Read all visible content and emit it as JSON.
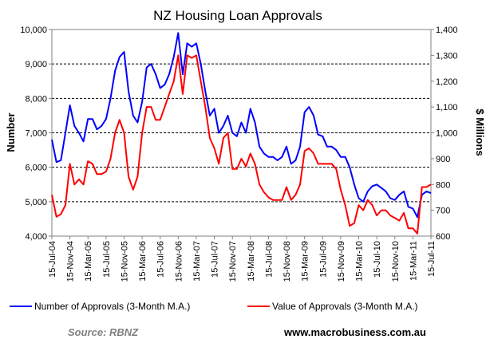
{
  "chart_data": {
    "type": "line",
    "title": "NZ Housing Loan Approvals",
    "ylabel_left": "Number",
    "ylabel_right": "$ Millions",
    "ylim_left": [
      4000,
      10000
    ],
    "ylim_right": [
      600,
      1400
    ],
    "yticks_left": [
      "4,000",
      "5,000",
      "6,000",
      "7,000",
      "8,000",
      "9,000",
      "10,000"
    ],
    "yticks_right": [
      "600",
      "700",
      "800",
      "900",
      "1,000",
      "1,100",
      "1,200",
      "1,300",
      "1,400"
    ],
    "x_ticks": [
      "15-Jul-04",
      "15-Nov-04",
      "15-Mar-05",
      "15-Jul-05",
      "15-Nov-05",
      "15-Mar-06",
      "15-Jul-06",
      "15-Nov-06",
      "15-Mar-07",
      "15-Jul-07",
      "15-Nov-07",
      "15-Mar-08",
      "15-Jul-08",
      "15-Nov-08",
      "15-Mar-09",
      "15-Jul-09",
      "15-Nov-09",
      "15-Mar-10",
      "15-Jul-10",
      "15-Nov-10",
      "15-Mar-11",
      "15-Jul-11"
    ],
    "grid": true,
    "legend_placement": "bottom",
    "series": [
      {
        "name": "Number of Approvals (3-Month M.A.)",
        "axis": "left",
        "color": "#0000ff",
        "x": [
          "2004-07-15",
          "2004-08-15",
          "2004-09-15",
          "2004-10-15",
          "2004-11-15",
          "2004-12-15",
          "2005-01-15",
          "2005-02-15",
          "2005-03-15",
          "2005-04-15",
          "2005-05-15",
          "2005-06-15",
          "2005-07-15",
          "2005-08-15",
          "2005-09-15",
          "2005-10-15",
          "2005-11-15",
          "2005-12-15",
          "2006-01-15",
          "2006-02-15",
          "2006-03-15",
          "2006-04-15",
          "2006-05-15",
          "2006-06-15",
          "2006-07-15",
          "2006-08-15",
          "2006-09-15",
          "2006-10-15",
          "2006-11-15",
          "2006-12-15",
          "2007-01-15",
          "2007-02-15",
          "2007-03-15",
          "2007-04-15",
          "2007-05-15",
          "2007-06-15",
          "2007-07-15",
          "2007-08-15",
          "2007-09-15",
          "2007-10-15",
          "2007-11-15",
          "2007-12-15",
          "2008-01-15",
          "2008-02-15",
          "2008-03-15",
          "2008-04-15",
          "2008-05-15",
          "2008-06-15",
          "2008-07-15",
          "2008-08-15",
          "2008-09-15",
          "2008-10-15",
          "2008-11-15",
          "2008-12-15",
          "2009-01-15",
          "2009-02-15",
          "2009-03-15",
          "2009-04-15",
          "2009-05-15",
          "2009-06-15",
          "2009-07-15",
          "2009-08-15",
          "2009-09-15",
          "2009-10-15",
          "2009-11-15",
          "2009-12-15",
          "2010-01-15",
          "2010-02-15",
          "2010-03-15",
          "2010-04-15",
          "2010-05-15",
          "2010-06-15",
          "2010-07-15",
          "2010-08-15",
          "2010-09-15",
          "2010-10-15",
          "2010-11-15",
          "2010-12-15",
          "2011-01-15",
          "2011-02-15",
          "2011-03-15",
          "2011-04-15",
          "2011-05-15",
          "2011-06-15",
          "2011-07-15"
        ],
        "y": [
          6800,
          6150,
          6200,
          7000,
          7800,
          7200,
          7000,
          6750,
          7400,
          7400,
          7100,
          7200,
          7400,
          8000,
          8800,
          9200,
          9350,
          8200,
          7500,
          7300,
          7900,
          8900,
          9000,
          8700,
          8300,
          8400,
          8700,
          9200,
          9900,
          8700,
          9600,
          9500,
          9600,
          9000,
          8200,
          7500,
          7700,
          7000,
          7200,
          7500,
          7000,
          6900,
          7300,
          7000,
          7700,
          7300,
          6600,
          6400,
          6300,
          6300,
          6200,
          6300,
          6600,
          6100,
          6200,
          6600,
          7600,
          7750,
          7500,
          6950,
          6900,
          6600,
          6600,
          6500,
          6300,
          6300,
          6000,
          5500,
          5100,
          5000,
          5300,
          5450,
          5500,
          5400,
          5300,
          5100,
          5050,
          5200,
          5300,
          4850,
          4800,
          4550,
          5200,
          5300,
          5250
        ]
      },
      {
        "name": "Value of Approvals (3-Month M.A.)",
        "axis": "right",
        "color": "#ff0000",
        "x": [
          "2004-07-15",
          "2004-08-15",
          "2004-09-15",
          "2004-10-15",
          "2004-11-15",
          "2004-12-15",
          "2005-01-15",
          "2005-02-15",
          "2005-03-15",
          "2005-04-15",
          "2005-05-15",
          "2005-06-15",
          "2005-07-15",
          "2005-08-15",
          "2005-09-15",
          "2005-10-15",
          "2005-11-15",
          "2005-12-15",
          "2006-01-15",
          "2006-02-15",
          "2006-03-15",
          "2006-04-15",
          "2006-05-15",
          "2006-06-15",
          "2006-07-15",
          "2006-08-15",
          "2006-09-15",
          "2006-10-15",
          "2006-11-15",
          "2006-12-15",
          "2007-01-15",
          "2007-02-15",
          "2007-03-15",
          "2007-04-15",
          "2007-05-15",
          "2007-06-15",
          "2007-07-15",
          "2007-08-15",
          "2007-09-15",
          "2007-10-15",
          "2007-11-15",
          "2007-12-15",
          "2008-01-15",
          "2008-02-15",
          "2008-03-15",
          "2008-04-15",
          "2008-05-15",
          "2008-06-15",
          "2008-07-15",
          "2008-08-15",
          "2008-09-15",
          "2008-10-15",
          "2008-11-15",
          "2008-12-15",
          "2009-01-15",
          "2009-02-15",
          "2009-03-15",
          "2009-04-15",
          "2009-05-15",
          "2009-06-15",
          "2009-07-15",
          "2009-08-15",
          "2009-09-15",
          "2009-10-15",
          "2009-11-15",
          "2009-12-15",
          "2010-01-15",
          "2010-02-15",
          "2010-03-15",
          "2010-04-15",
          "2010-05-15",
          "2010-06-15",
          "2010-07-15",
          "2010-08-15",
          "2010-09-15",
          "2010-10-15",
          "2010-11-15",
          "2010-12-15",
          "2011-01-15",
          "2011-02-15",
          "2011-03-15",
          "2011-04-15",
          "2011-05-15",
          "2011-06-15",
          "2011-07-15"
        ],
        "y": [
          760,
          675,
          685,
          720,
          880,
          800,
          820,
          800,
          890,
          880,
          840,
          840,
          850,
          900,
          1000,
          1050,
          1000,
          830,
          780,
          830,
          1000,
          1100,
          1100,
          1050,
          1050,
          1100,
          1150,
          1200,
          1300,
          1150,
          1300,
          1290,
          1300,
          1200,
          1100,
          980,
          940,
          880,
          980,
          1000,
          860,
          860,
          900,
          870,
          920,
          880,
          800,
          770,
          750,
          740,
          740,
          740,
          790,
          740,
          760,
          800,
          930,
          940,
          920,
          880,
          880,
          880,
          880,
          860,
          780,
          720,
          640,
          650,
          720,
          700,
          740,
          720,
          680,
          700,
          700,
          680,
          670,
          660,
          690,
          630,
          630,
          610,
          790,
          790,
          800
        ]
      }
    ],
    "legend": [
      "Number of Approvals (3-Month M.A.)",
      "Value of Approvals (3-Month M.A.)"
    ]
  },
  "footer": {
    "source": "Source: RBNZ",
    "website": "www.macrobusiness.com.au"
  }
}
